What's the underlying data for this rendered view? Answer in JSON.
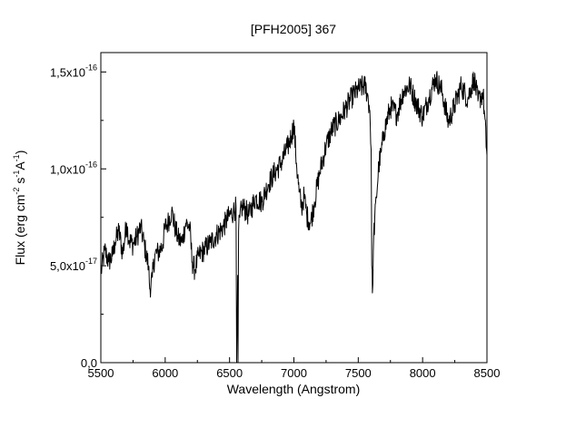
{
  "chart_data": {
    "type": "line",
    "title": "[PFH2005] 367",
    "xlabel": "Wavelength (Angstrom)",
    "ylabel_parts": [
      "Flux (erg cm",
      "-2",
      " s",
      "-1",
      "A",
      "-1",
      ")"
    ],
    "xlim": [
      5500,
      8500
    ],
    "ylim": [
      0,
      1.6e-16
    ],
    "x_ticks": [
      5500,
      6000,
      6500,
      7000,
      7500,
      8000,
      8500
    ],
    "x_tick_labels": [
      "5500",
      "6000",
      "6500",
      "7000",
      "7500",
      "8000",
      "8500"
    ],
    "y_ticks": [
      0,
      5e-17,
      1e-16,
      1.5e-16
    ],
    "y_tick_labels": [
      {
        "base": "0,0",
        "exp": ""
      },
      {
        "base": "5,0x10",
        "exp": "-17"
      },
      {
        "base": "1,0x10",
        "exp": "-16"
      },
      {
        "base": "1,5x10",
        "exp": "-16"
      }
    ],
    "series": [
      {
        "color": "#000000",
        "x": [
          5500,
          5530,
          5560,
          5590,
          5610,
          5640,
          5670,
          5700,
          5720,
          5750,
          5780,
          5810,
          5840,
          5870,
          5880,
          5900,
          5920,
          5950,
          5980,
          6000,
          6020,
          6050,
          6080,
          6100,
          6130,
          6160,
          6190,
          6210,
          6230,
          6260,
          6300,
          6350,
          6400,
          6450,
          6500,
          6530,
          6550,
          6555,
          6560,
          6563,
          6566,
          6570,
          6580,
          6600,
          6650,
          6700,
          6750,
          6800,
          6850,
          6900,
          6950,
          6980,
          7000,
          7020,
          7040,
          7060,
          7080,
          7100,
          7130,
          7160,
          7200,
          7250,
          7300,
          7350,
          7400,
          7450,
          7500,
          7550,
          7570,
          7590,
          7600,
          7605,
          7610,
          7620,
          7640,
          7660,
          7680,
          7700,
          7750,
          7800,
          7850,
          7900,
          7950,
          8000,
          8050,
          8100,
          8150,
          8200,
          8250,
          8300,
          8350,
          8400,
          8430,
          8470,
          8500
        ],
        "y": [
          4.6e-17,
          5.8e-17,
          5.2e-17,
          5.5e-17,
          6.2e-17,
          6.8e-17,
          5.6e-17,
          7.2e-17,
          6.3e-17,
          6.1e-17,
          6.5e-17,
          7e-17,
          6e-17,
          5e-17,
          3.8e-17,
          4.4e-17,
          5.6e-17,
          5.7e-17,
          6.1e-17,
          7e-17,
          7.2e-17,
          7.8e-17,
          6.9e-17,
          6.4e-17,
          6.2e-17,
          7.2e-17,
          7e-17,
          5.2e-17,
          4.8e-17,
          5.5e-17,
          5.8e-17,
          6.2e-17,
          6.6e-17,
          7e-17,
          7.6e-17,
          7.8e-17,
          8e-17,
          0.0,
          2.5e-17,
          4.5e-17,
          0.0,
          6.8e-17,
          7.5e-17,
          8.1e-17,
          7.6e-17,
          8.5e-17,
          8.3e-17,
          9.2e-17,
          9.8e-17,
          1.03e-16,
          1.11e-16,
          1.17e-16,
          1.23e-16,
          1.03e-16,
          8.8e-17,
          8e-17,
          8.6e-17,
          7.6e-17,
          7.2e-17,
          8.3e-17,
          9.8e-17,
          1.12e-16,
          1.21e-16,
          1.25e-16,
          1.31e-16,
          1.37e-16,
          1.41e-16,
          1.43e-16,
          1.39e-16,
          1.3e-16,
          1.1e-16,
          5e-17,
          3.6e-17,
          6.5e-17,
          8.5e-17,
          1.02e-16,
          1.09e-16,
          1.19e-16,
          1.32e-16,
          1.28e-16,
          1.4e-16,
          1.43e-16,
          1.34e-16,
          1.27e-16,
          1.37e-16,
          1.47e-16,
          1.4e-16,
          1.24e-16,
          1.33e-16,
          1.43e-16,
          1.36e-16,
          1.47e-16,
          1.35e-16,
          1.39e-16,
          1.07e-16
        ]
      }
    ],
    "grid": false,
    "legend": "none"
  }
}
